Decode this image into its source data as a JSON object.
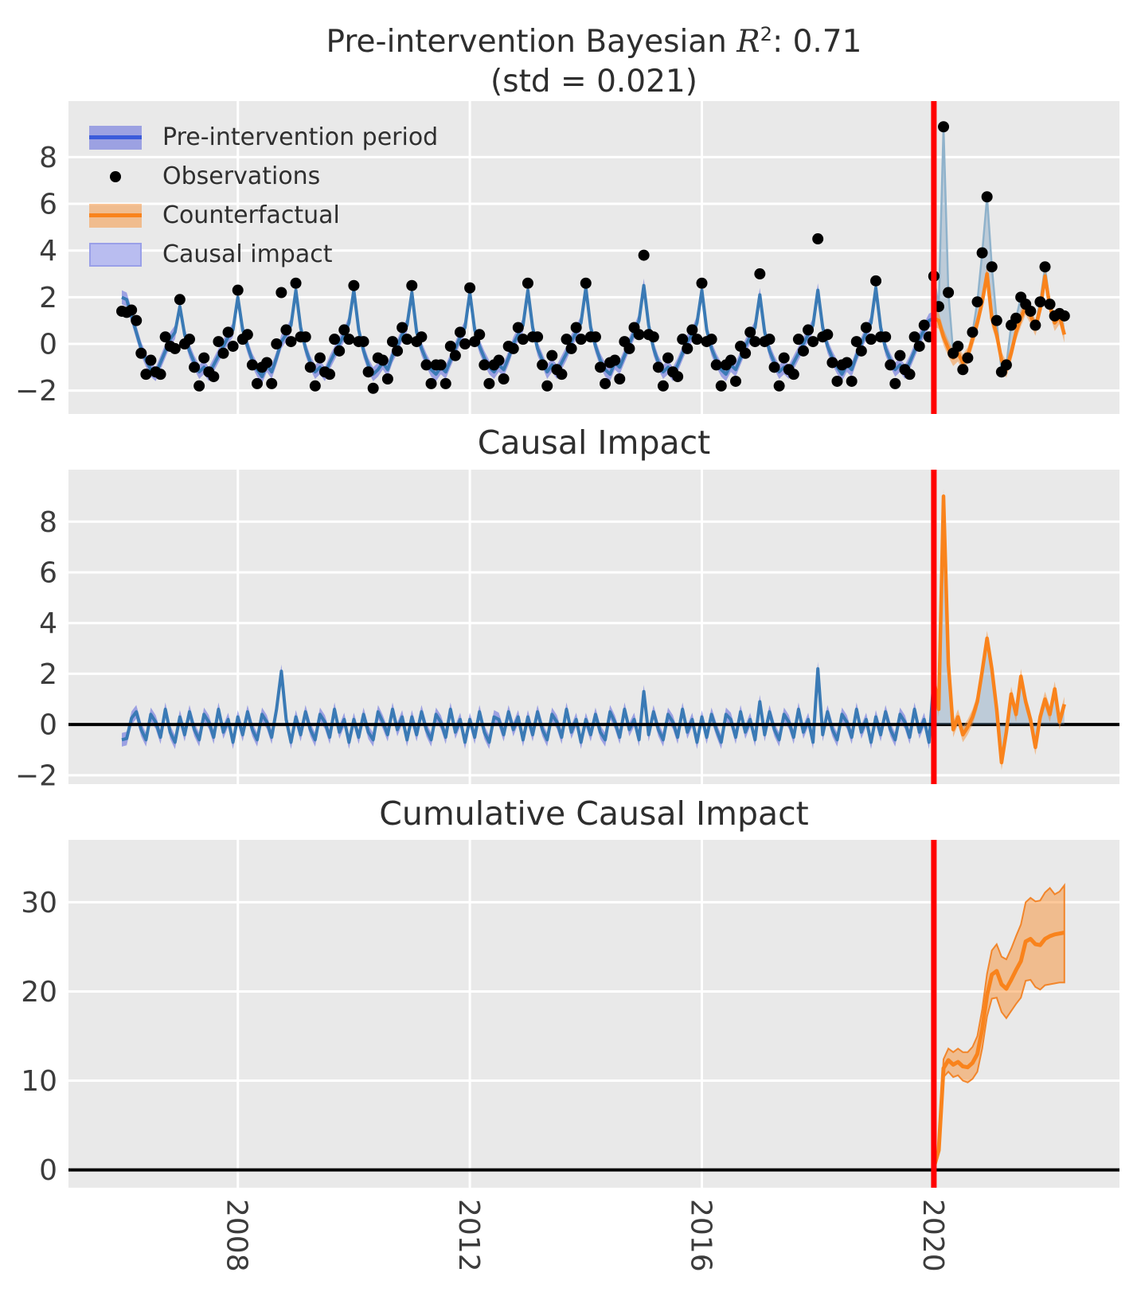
{
  "figure": {
    "title_line1_prefix": "Pre-intervention Bayesian ",
    "title_math_symbol": "R",
    "title_math_sup": "2",
    "title_line1_suffix": ": 0.71",
    "title_line2": "(std = 0.021)"
  },
  "legend": {
    "items": [
      {
        "label": "Pre-intervention period",
        "swatch": "band-line",
        "band": "rgba(80,90,220,0.5)",
        "line": "#3b5bdb"
      },
      {
        "label": "Observations",
        "swatch": "dot",
        "dot": "#000000"
      },
      {
        "label": "Counterfactual",
        "swatch": "band-line",
        "band": "rgba(248,133,32,0.45)",
        "line": "#f9831c"
      },
      {
        "label": "Causal impact",
        "swatch": "band",
        "band": "#b9bdf0",
        "border": "#9aa0e8"
      }
    ]
  },
  "colors": {
    "pre_line": "#3a7ab5",
    "pre_band": "rgba(80,90,220,0.50)",
    "cf_line": "#f9831c",
    "cf_band": "rgba(248,133,32,0.45)",
    "cf_band_edge": "rgba(242,120,18,0.85)",
    "impact_fill": "rgba(110,150,185,0.35)",
    "obs_post_line": "#8fb2cb",
    "obs_dot": "#000000",
    "red_line": "#ff0000",
    "zero_line": "#000000",
    "panel_bg": "#e9e9e9",
    "grid": "#ffffff",
    "tick": "#3c3c3c"
  },
  "chart_data": [
    {
      "panel": "model",
      "type": "line",
      "title": "Pre-intervention Bayesian R^2: 0.71 (std = 0.021)",
      "xlim": [
        2005.08,
        2023.2
      ],
      "xticks": [
        2008,
        2012,
        2016,
        2020
      ],
      "ylim": [
        -3.0,
        10.4
      ],
      "yticks": [
        -2,
        0,
        2,
        4,
        6,
        8
      ],
      "intervention_x": 2020,
      "series": {
        "x_start": 2006.0,
        "x_step": 0.0833333,
        "band_halfwidth": 0.3,
        "fit_pre": [
          2.0,
          1.9,
          1.2,
          0.5,
          -0.2,
          -0.7,
          -1.1,
          -1.3,
          -0.8,
          -0.3,
          0.2,
          0.5,
          1.6,
          0.4,
          -0.3,
          -0.8,
          -1.2,
          -1.0,
          -1.3,
          -0.9,
          -0.5,
          -0.1,
          0.3,
          0.6,
          2.0,
          0.6,
          -0.1,
          -0.7,
          -1.1,
          -1.4,
          -0.9,
          -1.2,
          -0.6,
          0.1,
          0.4,
          0.8,
          2.3,
          0.7,
          -0.2,
          -0.8,
          -1.2,
          -1.0,
          -1.3,
          -0.8,
          -0.4,
          0.0,
          0.4,
          0.9,
          2.3,
          0.6,
          -0.3,
          -0.9,
          -1.3,
          -1.1,
          -0.8,
          -1.1,
          -0.5,
          -0.1,
          0.4,
          0.8,
          2.2,
          0.5,
          -0.2,
          -0.7,
          -1.1,
          -1.3,
          -1.0,
          -1.2,
          -0.7,
          -0.2,
          0.3,
          0.7,
          2.2,
          0.6,
          -0.1,
          -0.6,
          -1.0,
          -1.2,
          -0.9,
          -1.1,
          -0.6,
          0.0,
          0.4,
          0.8,
          2.3,
          0.7,
          -0.2,
          -0.7,
          -1.2,
          -0.9,
          -1.2,
          -0.8,
          -0.4,
          0.1,
          0.5,
          0.9,
          2.4,
          0.7,
          -0.1,
          -0.7,
          -1.1,
          -1.3,
          -0.8,
          -1.0,
          -0.5,
          0.0,
          0.5,
          1.0,
          2.5,
          0.8,
          -0.2,
          -0.8,
          -1.2,
          -1.0,
          -1.3,
          -0.9,
          -0.4,
          0.1,
          0.4,
          0.9,
          2.3,
          0.6,
          -0.2,
          -0.7,
          -1.1,
          -1.3,
          -0.9,
          -1.1,
          -0.6,
          -0.1,
          0.3,
          0.7,
          2.1,
          0.5,
          -0.3,
          -0.8,
          -1.2,
          -1.0,
          -1.2,
          -0.8,
          -0.4,
          0.0,
          0.4,
          0.8,
          2.3,
          0.7,
          -0.1,
          -0.6,
          -1.0,
          -1.3,
          -0.9,
          -1.1,
          -0.5,
          0.0,
          0.5,
          0.9,
          2.4,
          0.7,
          -0.2,
          -0.7,
          -1.1,
          -0.9,
          -1.2,
          -0.8,
          -0.3,
          0.2,
          0.6,
          1.0,
          1.1
        ],
        "resid_pre": [
          -0.6,
          -0.55,
          0.25,
          0.5,
          -0.2,
          -0.6,
          0.4,
          0.1,
          -0.5,
          0.6,
          -0.3,
          -0.7,
          0.3,
          -0.4,
          0.5,
          -0.2,
          -0.6,
          0.4,
          0.1,
          -0.5,
          0.6,
          -0.3,
          0.2,
          -0.7,
          0.3,
          -0.4,
          0.5,
          -0.2,
          -0.6,
          0.4,
          0.1,
          -0.5,
          0.6,
          2.1,
          0.2,
          -0.7,
          0.3,
          -0.4,
          0.5,
          -0.2,
          -0.6,
          0.4,
          0.1,
          -0.5,
          0.6,
          -0.3,
          0.2,
          -0.7,
          0.2,
          -0.5,
          0.4,
          -0.3,
          -0.6,
          0.5,
          0.1,
          -0.4,
          0.6,
          -0.2,
          0.3,
          -0.6,
          0.3,
          -0.4,
          0.5,
          -0.2,
          -0.6,
          0.4,
          0.1,
          -0.5,
          0.6,
          -0.3,
          0.2,
          -0.7,
          0.2,
          -0.5,
          0.5,
          -0.3,
          -0.7,
          0.3,
          0.2,
          -0.4,
          0.5,
          -0.2,
          0.3,
          -0.6,
          0.3,
          -0.4,
          0.5,
          -0.2,
          -0.6,
          0.4,
          0.1,
          -0.5,
          0.6,
          -0.3,
          0.2,
          -0.7,
          0.2,
          -0.4,
          0.4,
          -0.3,
          -0.6,
          0.5,
          0.1,
          -0.5,
          0.6,
          -0.2,
          0.2,
          -0.6,
          1.3,
          -0.4,
          0.5,
          -0.2,
          -0.6,
          0.4,
          0.1,
          -0.5,
          0.6,
          -0.3,
          0.2,
          -0.7,
          0.3,
          -0.5,
          0.4,
          -0.2,
          -0.7,
          0.4,
          0.2,
          -0.5,
          0.5,
          -0.3,
          0.2,
          -0.6,
          0.9,
          -0.4,
          0.5,
          -0.2,
          -0.6,
          0.4,
          0.1,
          -0.5,
          0.6,
          -0.3,
          0.2,
          -0.7,
          2.2,
          -0.4,
          0.5,
          -0.2,
          -0.6,
          0.4,
          0.1,
          -0.5,
          0.6,
          -0.3,
          0.2,
          -0.7,
          0.3,
          -0.4,
          0.5,
          -0.2,
          -0.6,
          0.4,
          0.1,
          -0.5,
          0.6,
          -0.3,
          0.2,
          -0.7,
          1.8
        ],
        "post": {
          "x_start": 2020.0,
          "x_step": 0.0833333,
          "counterfactual_band_halfwidth": 0.35,
          "counterfactual": [
            1.1,
            1.0,
            0.3,
            -0.2,
            -0.6,
            -0.4,
            -0.8,
            -0.5,
            0.2,
            0.9,
            1.8,
            3.0,
            1.1,
            0.4,
            -0.7,
            -1.1,
            -0.4,
            0.5,
            1.1,
            1.6,
            1.2,
            0.7,
            1.5,
            2.9,
            1.6,
            0.9,
            1.2,
            0.4
          ],
          "observations": [
            2.9,
            1.6,
            9.3,
            2.2,
            -0.4,
            -0.1,
            -1.1,
            -0.6,
            0.5,
            1.8,
            3.9,
            6.3,
            3.3,
            1.0,
            -1.2,
            -0.9,
            0.8,
            1.1,
            2.0,
            1.7,
            1.4,
            0.8,
            1.8,
            3.3,
            1.7,
            1.2,
            1.3,
            1.2
          ]
        }
      }
    },
    {
      "panel": "pointwise",
      "type": "line",
      "title": "Causal Impact",
      "ylim": [
        -2.35,
        10.05
      ],
      "yticks": [
        -2,
        0,
        2,
        4,
        6,
        8
      ],
      "intervention_x": 2020,
      "series": {
        "pre_impact_source": "model.resid_pre",
        "band_halfwidth": 0.27,
        "post_band_halfwidth": 0.3,
        "post_impact": [
          1.8,
          0.6,
          9.0,
          2.4,
          -0.2,
          0.3,
          -0.4,
          -0.1,
          0.3,
          0.9,
          2.1,
          3.4,
          2.2,
          0.6,
          -1.5,
          -0.3,
          1.2,
          0.4,
          1.9,
          0.9,
          0.2,
          -0.9,
          0.3,
          1.0,
          0.4,
          1.4,
          0.1,
          0.8
        ]
      }
    },
    {
      "panel": "cumulative",
      "type": "line",
      "title": "Cumulative Causal Impact",
      "ylim": [
        -2.0,
        37.0
      ],
      "yticks": [
        0,
        10,
        20,
        30
      ],
      "intervention_x": 2020,
      "series": {
        "x_start": 2020.0,
        "x_step": 0.0833333,
        "cumulative": [
          0.3,
          2.2,
          11.4,
          12.3,
          11.8,
          12.1,
          11.6,
          11.5,
          12.0,
          13.0,
          15.8,
          19.6,
          21.9,
          22.3,
          20.8,
          20.3,
          21.3,
          22.4,
          23.4,
          25.6,
          25.9,
          25.3,
          25.2,
          25.9,
          26.2,
          26.4,
          26.5,
          26.6
        ],
        "lower": [
          0.2,
          1.9,
          10.4,
          11.0,
          10.4,
          10.6,
          10.0,
          9.8,
          10.2,
          11.0,
          13.6,
          17.2,
          19.2,
          19.3,
          17.7,
          17.0,
          17.8,
          18.6,
          19.3,
          21.2,
          21.3,
          20.5,
          20.2,
          20.7,
          20.8,
          20.9,
          21.0,
          21.0
        ],
        "upper": [
          0.4,
          2.5,
          12.4,
          13.6,
          13.2,
          13.6,
          13.2,
          13.2,
          13.8,
          15.0,
          18.0,
          22.0,
          24.6,
          25.3,
          23.9,
          23.6,
          24.8,
          26.2,
          27.5,
          30.0,
          30.5,
          30.1,
          30.2,
          31.1,
          31.6,
          30.9,
          31.2,
          31.9
        ]
      }
    }
  ]
}
